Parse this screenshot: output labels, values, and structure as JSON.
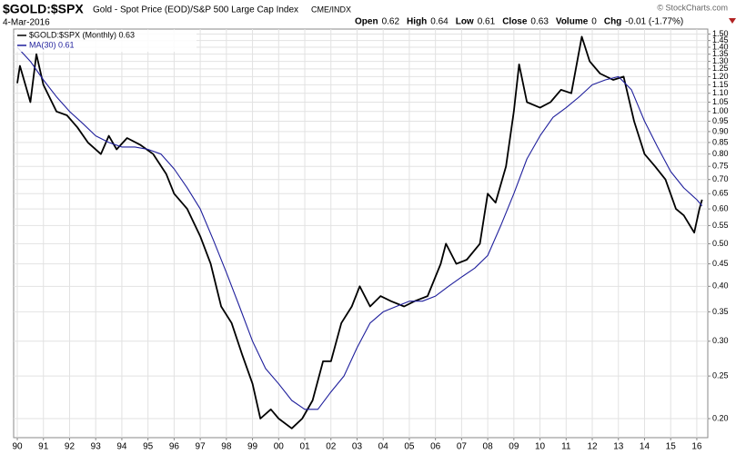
{
  "chart_data": {
    "type": "line",
    "title": "$GOLD:$SPX",
    "subtitle": "Gold - Spot Price (EOD)/S&P 500 Large Cap Index",
    "exchange": "CME/INDX",
    "date": "4-Mar-2016",
    "quote": [
      {
        "label": "Open",
        "value": "0.62"
      },
      {
        "label": "High",
        "value": "0.64"
      },
      {
        "label": "Low",
        "value": "0.61"
      },
      {
        "label": "Close",
        "value": "0.63"
      },
      {
        "label": "Volume",
        "value": "0"
      },
      {
        "label": "Chg",
        "value": "-0.01 (-1.77%)"
      }
    ],
    "watermark": "© StockCharts.com",
    "log_scale": true,
    "grid": true,
    "legend": "top-left",
    "xlim": [
      1989.86,
      2016.42
    ],
    "xticks": [
      {
        "value": 1990,
        "label": "90"
      },
      {
        "value": 1991,
        "label": "91"
      },
      {
        "value": 1992,
        "label": "92"
      },
      {
        "value": 1993,
        "label": "93"
      },
      {
        "value": 1994,
        "label": "94"
      },
      {
        "value": 1995,
        "label": "95"
      },
      {
        "value": 1996,
        "label": "96"
      },
      {
        "value": 1997,
        "label": "97"
      },
      {
        "value": 1998,
        "label": "98"
      },
      {
        "value": 1999,
        "label": "99"
      },
      {
        "value": 2000,
        "label": "00"
      },
      {
        "value": 2001,
        "label": "01"
      },
      {
        "value": 2002,
        "label": "02"
      },
      {
        "value": 2003,
        "label": "03"
      },
      {
        "value": 2004,
        "label": "04"
      },
      {
        "value": 2005,
        "label": "05"
      },
      {
        "value": 2006,
        "label": "06"
      },
      {
        "value": 2007,
        "label": "07"
      },
      {
        "value": 2008,
        "label": "08"
      },
      {
        "value": 2009,
        "label": "09"
      },
      {
        "value": 2010,
        "label": "10"
      },
      {
        "value": 2011,
        "label": "11"
      },
      {
        "value": 2012,
        "label": "12"
      },
      {
        "value": 2013,
        "label": "13"
      },
      {
        "value": 2014,
        "label": "14"
      },
      {
        "value": 2015,
        "label": "15"
      },
      {
        "value": 2016,
        "label": "16"
      }
    ],
    "ylim": [
      0.181,
      1.54
    ],
    "yticks": [
      {
        "value": 0.2,
        "label": "0.20"
      },
      {
        "value": 0.25,
        "label": "0.25"
      },
      {
        "value": 0.3,
        "label": "0.30"
      },
      {
        "value": 0.35,
        "label": "0.35"
      },
      {
        "value": 0.4,
        "label": "0.40"
      },
      {
        "value": 0.45,
        "label": "0.45"
      },
      {
        "value": 0.5,
        "label": "0.50"
      },
      {
        "value": 0.55,
        "label": "0.55"
      },
      {
        "value": 0.6,
        "label": "0.60"
      },
      {
        "value": 0.65,
        "label": "0.65"
      },
      {
        "value": 0.7,
        "label": "0.70"
      },
      {
        "value": 0.75,
        "label": "0.75"
      },
      {
        "value": 0.8,
        "label": "0.80"
      },
      {
        "value": 0.85,
        "label": "0.85"
      },
      {
        "value": 0.9,
        "label": "0.90"
      },
      {
        "value": 0.95,
        "label": "0.95"
      },
      {
        "value": 1.0,
        "label": "1.00"
      },
      {
        "value": 1.05,
        "label": "1.05"
      },
      {
        "value": 1.1,
        "label": "1.10"
      },
      {
        "value": 1.15,
        "label": "1.15"
      },
      {
        "value": 1.2,
        "label": "1.20"
      },
      {
        "value": 1.25,
        "label": "1.25"
      },
      {
        "value": 1.3,
        "label": "1.30"
      },
      {
        "value": 1.35,
        "label": "1.35"
      },
      {
        "value": 1.4,
        "label": "1.40"
      },
      {
        "value": 1.45,
        "label": "1.45"
      },
      {
        "value": 1.5,
        "label": "1.50"
      }
    ],
    "series": [
      {
        "name": "$GOLD:$SPX (Monthly) 0.63",
        "color": "#000000",
        "x": [
          1990.0,
          1990.1,
          1990.5,
          1990.73,
          1991.0,
          1991.5,
          1991.9,
          1992.3,
          1992.7,
          1993.2,
          1993.5,
          1993.8,
          1994.2,
          1994.7,
          1995.2,
          1995.7,
          1996.0,
          1996.5,
          1997.0,
          1997.4,
          1997.8,
          1998.2,
          1998.6,
          1999.0,
          1999.3,
          1999.7,
          2000.0,
          2000.5,
          2000.9,
          2001.3,
          2001.7,
          2002.0,
          2002.4,
          2002.8,
          2003.1,
          2003.5,
          2003.9,
          2004.3,
          2004.8,
          2005.2,
          2005.7,
          2006.2,
          2006.4,
          2006.8,
          2007.2,
          2007.7,
          2008.0,
          2008.3,
          2008.7,
          2009.0,
          2009.2,
          2009.5,
          2010.0,
          2010.4,
          2010.8,
          2011.2,
          2011.6,
          2011.9,
          2012.3,
          2012.8,
          2013.2,
          2013.6,
          2014.0,
          2014.4,
          2014.8,
          2015.2,
          2015.5,
          2015.9,
          2016.1,
          2016.2
        ],
        "values": [
          1.16,
          1.27,
          1.05,
          1.35,
          1.15,
          1.0,
          0.98,
          0.92,
          0.85,
          0.8,
          0.88,
          0.82,
          0.87,
          0.84,
          0.8,
          0.72,
          0.65,
          0.6,
          0.52,
          0.45,
          0.36,
          0.33,
          0.28,
          0.24,
          0.2,
          0.21,
          0.2,
          0.19,
          0.2,
          0.22,
          0.27,
          0.27,
          0.33,
          0.36,
          0.4,
          0.36,
          0.38,
          0.37,
          0.36,
          0.37,
          0.38,
          0.45,
          0.5,
          0.45,
          0.46,
          0.5,
          0.65,
          0.62,
          0.75,
          1.0,
          1.28,
          1.05,
          1.02,
          1.05,
          1.12,
          1.1,
          1.48,
          1.3,
          1.22,
          1.18,
          1.2,
          0.95,
          0.8,
          0.75,
          0.7,
          0.6,
          0.58,
          0.53,
          0.6,
          0.63
        ]
      },
      {
        "name": "MA(30) 0.61",
        "color": "#1f1f9c",
        "x": [
          1990.0,
          1990.5,
          1991.0,
          1991.5,
          1992.0,
          1992.5,
          1993.0,
          1993.5,
          1994.0,
          1994.5,
          1995.0,
          1995.5,
          1996.0,
          1996.5,
          1997.0,
          1997.5,
          1998.0,
          1998.5,
          1999.0,
          1999.5,
          2000.0,
          2000.5,
          2001.0,
          2001.5,
          2002.0,
          2002.5,
          2003.0,
          2003.5,
          2004.0,
          2004.5,
          2005.0,
          2005.5,
          2006.0,
          2006.5,
          2007.0,
          2007.5,
          2008.0,
          2008.5,
          2009.0,
          2009.5,
          2010.0,
          2010.5,
          2011.0,
          2011.5,
          2012.0,
          2012.5,
          2013.0,
          2013.5,
          2014.0,
          2014.5,
          2015.0,
          2015.5,
          2016.0,
          2016.2
        ],
        "values": [
          1.4,
          1.3,
          1.18,
          1.08,
          1.0,
          0.94,
          0.88,
          0.85,
          0.83,
          0.83,
          0.82,
          0.8,
          0.74,
          0.67,
          0.6,
          0.51,
          0.43,
          0.36,
          0.3,
          0.26,
          0.24,
          0.22,
          0.21,
          0.21,
          0.23,
          0.25,
          0.29,
          0.33,
          0.35,
          0.36,
          0.37,
          0.37,
          0.38,
          0.4,
          0.42,
          0.44,
          0.47,
          0.55,
          0.65,
          0.78,
          0.88,
          0.97,
          1.02,
          1.08,
          1.15,
          1.18,
          1.2,
          1.12,
          0.95,
          0.83,
          0.73,
          0.67,
          0.63,
          0.61
        ]
      }
    ]
  }
}
